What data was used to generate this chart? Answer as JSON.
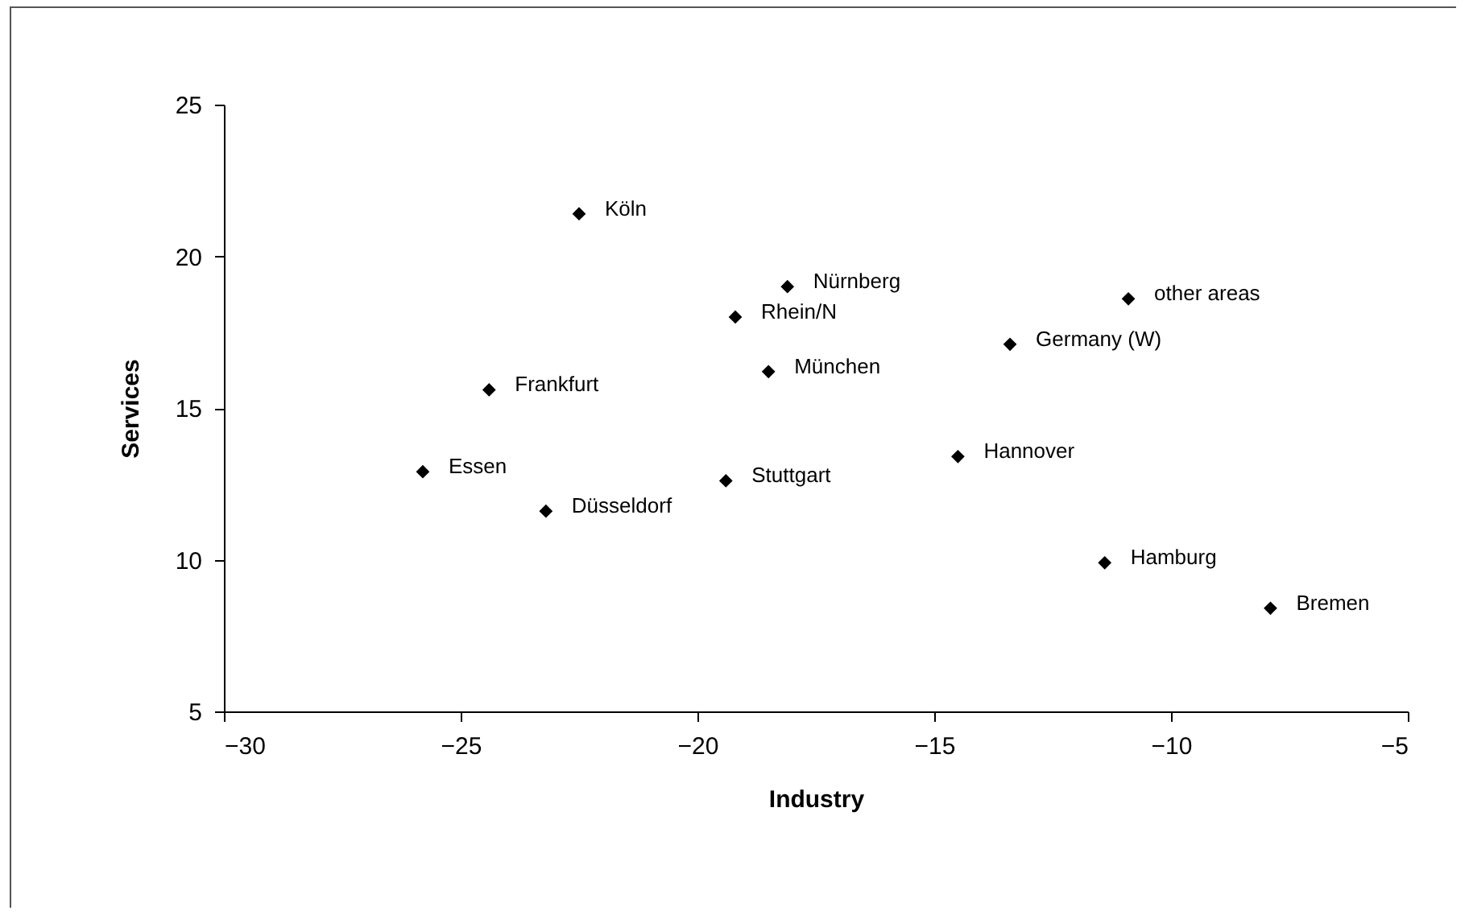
{
  "chart_data": {
    "type": "scatter",
    "xlabel": "Industry",
    "ylabel": "Services",
    "x": [
      -22.5,
      -18.1,
      -19.2,
      -18.5,
      -24.4,
      -25.8,
      -23.2,
      -19.4,
      -14.5,
      -13.4,
      -10.9,
      -11.4,
      -7.9
    ],
    "series": [
      {
        "color": "#000000",
        "values": [
          21.4,
          19.0,
          18.0,
          16.2,
          15.6,
          12.9,
          11.6,
          12.6,
          13.4,
          17.1,
          18.6,
          9.9,
          8.4
        ]
      }
    ],
    "annotations": [
      {
        "text": "Köln",
        "x": -22.5,
        "y": 21.4
      },
      {
        "text": "Nürnberg",
        "x": -18.1,
        "y": 19.0
      },
      {
        "text": "Rhein/N",
        "x": -19.2,
        "y": 18.0
      },
      {
        "text": "München",
        "x": -18.5,
        "y": 16.2
      },
      {
        "text": "Frankfurt",
        "x": -24.4,
        "y": 15.6
      },
      {
        "text": "Essen",
        "x": -25.8,
        "y": 12.9
      },
      {
        "text": "Düsseldorf",
        "x": -23.2,
        "y": 11.6
      },
      {
        "text": "Stuttgart",
        "x": -19.4,
        "y": 12.6
      },
      {
        "text": "Hannover",
        "x": -14.5,
        "y": 13.4
      },
      {
        "text": "Germany (W)",
        "x": -13.4,
        "y": 17.1
      },
      {
        "text": "other areas",
        "x": -10.9,
        "y": 18.6
      },
      {
        "text": "Hamburg",
        "x": -11.4,
        "y": 9.9
      },
      {
        "text": "Bremen",
        "x": -7.9,
        "y": 8.4
      }
    ],
    "xlim": [
      -30,
      -5
    ],
    "xticks": [
      -30,
      -25,
      -20,
      -15,
      -10,
      -5
    ],
    "ylim": [
      5,
      25
    ],
    "yticks": [
      5,
      10,
      15,
      20,
      25
    ],
    "marker": "diamond",
    "grid": false,
    "legend": false
  }
}
